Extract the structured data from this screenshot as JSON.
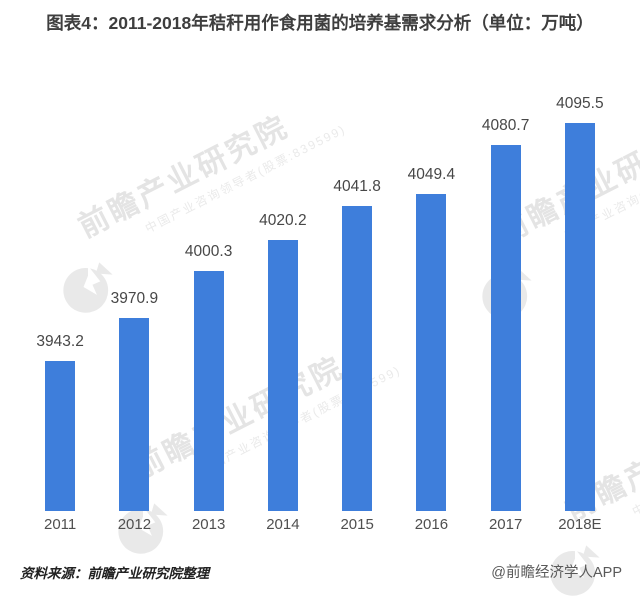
{
  "chart_data": {
    "type": "bar",
    "title": "图表4：2011-2018年秸秆用作食用菌的培养基需求分析（单位：万吨）",
    "categories": [
      "2011",
      "2012",
      "2013",
      "2014",
      "2015",
      "2016",
      "2017",
      "2018E"
    ],
    "values": [
      3943.2,
      3970.9,
      4000.3,
      4020.2,
      4041.8,
      4049.4,
      4080.7,
      4095.5
    ],
    "unit": "万吨",
    "xlabel": "",
    "ylabel": "",
    "ylim": [
      3847.6,
      4120
    ],
    "grid": false,
    "legend": "none",
    "data_labels": true,
    "bar_color": "#3E7EDB",
    "value_label_color": "#474747",
    "axis_label_color": "#4f4f4f"
  },
  "watermark": {
    "text_large": "前瞻产业研究院",
    "text_small": "中国产业咨询领导者(股票:839599)"
  },
  "footer": {
    "source": "资料来源：前瞻产业研究院整理",
    "credit": "@前瞻经济学人APP"
  }
}
